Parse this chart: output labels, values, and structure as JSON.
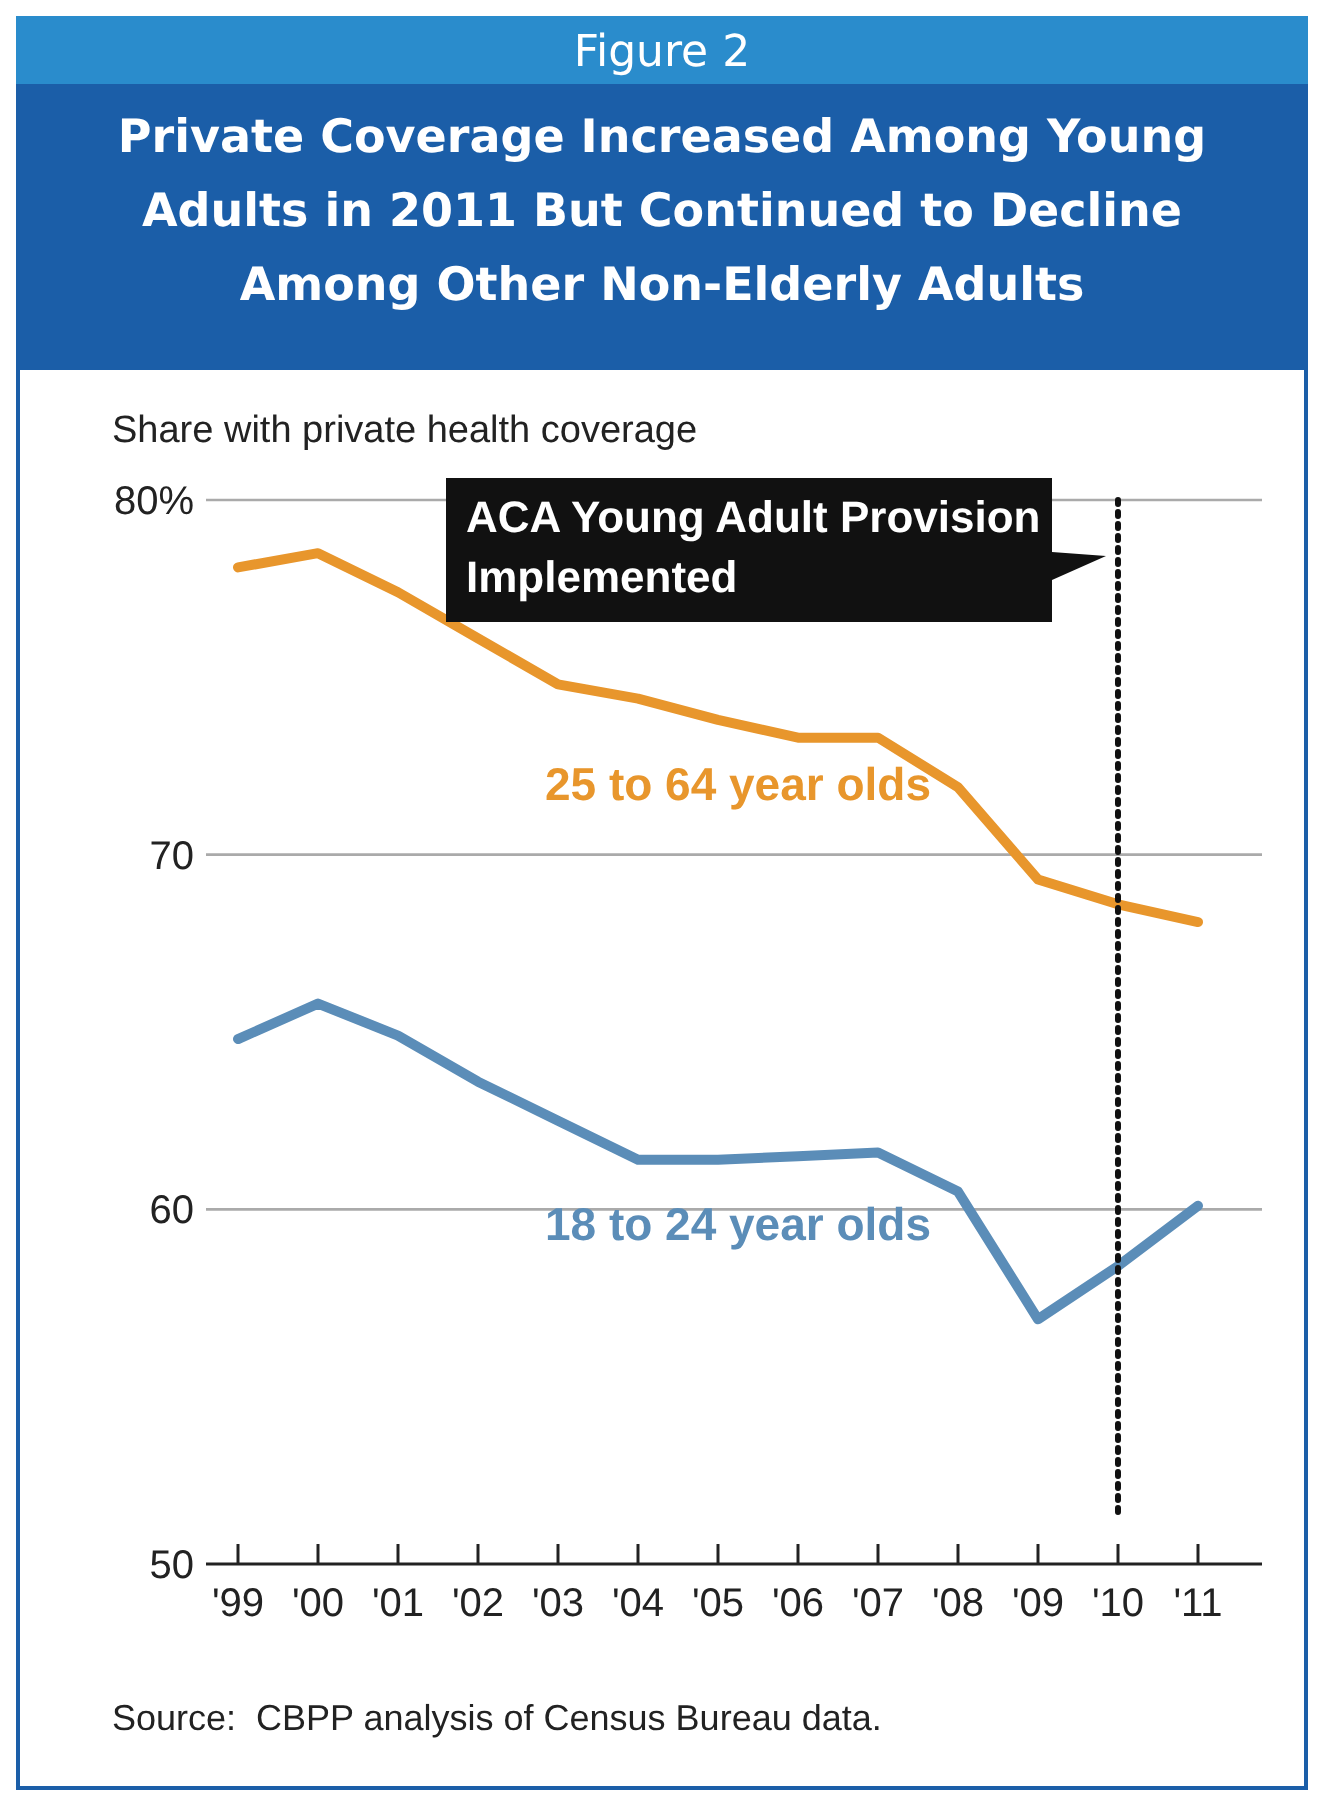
{
  "chart_data": {
    "type": "line",
    "title": "Figure 2",
    "subtitle": "Private Coverage Increased Among Young Adults in 2011 But Continued to Decline Among Other Non-Elderly Adults",
    "ylabel": "Share with private health coverage",
    "categories": [
      "'99",
      "'00",
      "'01",
      "'02",
      "'03",
      "'04",
      "'05",
      "'06",
      "'07",
      "'08",
      "'09",
      "'10",
      "'11"
    ],
    "series": [
      {
        "name": "25 to 64 year olds",
        "color": "#e8962c",
        "values": [
          78.1,
          78.5,
          77.4,
          76.1,
          74.8,
          74.4,
          73.8,
          73.3,
          73.3,
          71.9,
          69.3,
          68.6,
          68.1
        ]
      },
      {
        "name": "18 to 24 year olds",
        "color": "#5b8db8",
        "values": [
          64.8,
          65.8,
          64.9,
          63.6,
          62.5,
          61.4,
          61.4,
          61.5,
          61.6,
          60.5,
          56.9,
          58.4,
          60.1
        ]
      }
    ],
    "ylim": [
      50,
      80
    ],
    "yticks": [
      {
        "value": 50,
        "label": "50"
      },
      {
        "value": 60,
        "label": "60"
      },
      {
        "value": 70,
        "label": "70"
      },
      {
        "value": 80,
        "label": "80%"
      }
    ],
    "grid": "y",
    "marker": "none",
    "line_style": "solid",
    "ref_lines": [
      {
        "axis": "x",
        "value": "'10",
        "label": "ACA Young Adult Provision Implemented",
        "line_style": "dotted",
        "color": "#111111"
      }
    ],
    "annotations": [
      "Source:  CBPP analysis of Census Bureau data."
    ]
  }
}
